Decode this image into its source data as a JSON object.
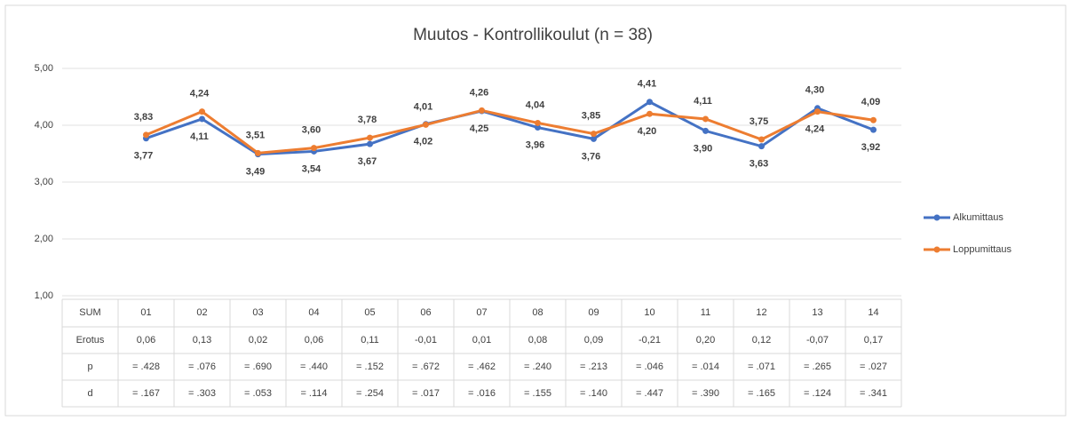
{
  "chart_data": {
    "type": "line",
    "title": "Muutos - Kontrollikoulut (n = 38)",
    "categories": [
      "01",
      "02",
      "03",
      "04",
      "05",
      "06",
      "07",
      "08",
      "09",
      "10",
      "11",
      "12",
      "13",
      "14"
    ],
    "series": [
      {
        "name": "Alkumittaus",
        "color": "#4472c4",
        "values": [
          3.77,
          4.11,
          3.49,
          3.54,
          3.67,
          4.02,
          4.25,
          3.96,
          3.76,
          4.41,
          3.9,
          3.63,
          4.3,
          3.92
        ],
        "value_labels": [
          "3,77",
          "4,11",
          "3,49",
          "3,54",
          "3,67",
          "4,02",
          "4,25",
          "3,96",
          "3,76",
          "4,41",
          "3,90",
          "3,63",
          "4,30",
          "3,92"
        ]
      },
      {
        "name": "Loppumittaus",
        "color": "#ed7d31",
        "values": [
          3.83,
          4.24,
          3.51,
          3.6,
          3.78,
          4.01,
          4.26,
          4.04,
          3.85,
          4.2,
          4.11,
          3.75,
          4.24,
          4.09
        ],
        "value_labels": [
          "3,83",
          "4,24",
          "3,51",
          "3,60",
          "3,78",
          "4,01",
          "4,26",
          "4,04",
          "3,85",
          "4,20",
          "4,11",
          "3,75",
          "4,24",
          "4,09"
        ]
      }
    ],
    "ylim": [
      1,
      5
    ],
    "yticks": [
      {
        "value": 1,
        "label": "1,00"
      },
      {
        "value": 2,
        "label": "2,00"
      },
      {
        "value": 3,
        "label": "3,00"
      },
      {
        "value": 4,
        "label": "4,00"
      },
      {
        "value": 5,
        "label": "5,00"
      }
    ],
    "grid": true,
    "legend": "right",
    "table": {
      "header": "SUM",
      "rows": [
        {
          "label": "Erotus",
          "cells": [
            "0,06",
            "0,13",
            "0,02",
            "0,06",
            "0,11",
            "-0,01",
            "0,01",
            "0,08",
            "0,09",
            "-0,21",
            "0,20",
            "0,12",
            "-0,07",
            "0,17"
          ]
        },
        {
          "label": "p",
          "cells": [
            "= .428",
            "= .076",
            "= .690",
            "= .440",
            "= .152",
            "= .672",
            "= .462",
            "= .240",
            "= .213",
            "= .046",
            "= .014",
            "= .071",
            "= .265",
            "= .027"
          ]
        },
        {
          "label": "d",
          "cells": [
            "= .167",
            "= .303",
            "= .053",
            "= .114",
            "= .254",
            "= .017",
            "= .016",
            "= .155",
            "= .140",
            "= .447",
            "= .390",
            "= .165",
            "= .124",
            "= .341"
          ]
        }
      ]
    }
  }
}
